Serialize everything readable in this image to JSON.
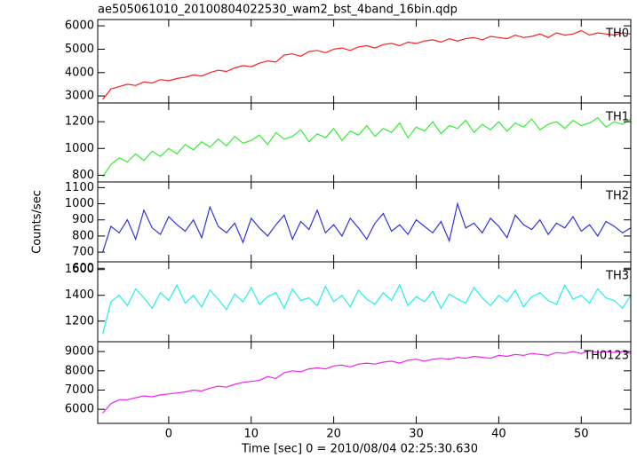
{
  "chart_data": {
    "type": "line",
    "title": "ae505061010_20100804022530_wam2_bst_4band_16bin.qdp",
    "x_label": "Time [sec] 0 = 2010/08/04 02:25:30.630",
    "y_label": "Counts/sec",
    "x": [
      -8,
      -7,
      -6,
      -5,
      -4,
      -3,
      -2,
      -1,
      0,
      1,
      2,
      3,
      4,
      5,
      6,
      7,
      8,
      9,
      10,
      11,
      12,
      13,
      14,
      15,
      16,
      17,
      18,
      19,
      20,
      21,
      22,
      23,
      24,
      25,
      26,
      27,
      28,
      29,
      30,
      31,
      32,
      33,
      34,
      35,
      36,
      37,
      38,
      39,
      40,
      41,
      42,
      43,
      44,
      45,
      46,
      47,
      48,
      49,
      50,
      51,
      52,
      53,
      54,
      55,
      56
    ],
    "xlim": [
      -8.6,
      56.0
    ],
    "xticks": [
      0,
      10,
      20,
      30,
      40,
      50
    ],
    "series": [
      {
        "name": "TH0",
        "color": "#ff2020",
        "ylim": [
          2700,
          6270
        ],
        "yticks": [
          3000,
          4000,
          5000,
          6000
        ],
        "values": [
          2850,
          3300,
          3400,
          3500,
          3450,
          3600,
          3550,
          3700,
          3650,
          3750,
          3800,
          3900,
          3850,
          4000,
          4100,
          4050,
          4200,
          4300,
          4250,
          4400,
          4500,
          4450,
          4750,
          4800,
          4700,
          4900,
          4950,
          4850,
          5000,
          5050,
          4950,
          5100,
          5150,
          5050,
          5200,
          5250,
          5150,
          5300,
          5250,
          5350,
          5400,
          5300,
          5450,
          5350,
          5450,
          5500,
          5400,
          5550,
          5500,
          5450,
          5600,
          5500,
          5550,
          5650,
          5500,
          5700,
          5600,
          5650,
          5800,
          5600,
          5700,
          5650,
          5600,
          5700,
          5650
        ]
      },
      {
        "name": "TH1",
        "color": "#33ee33",
        "ylim": [
          750,
          1340
        ],
        "yticks": [
          800,
          1000,
          1200
        ],
        "values": [
          790,
          880,
          930,
          900,
          960,
          910,
          980,
          940,
          1000,
          960,
          1030,
          990,
          1050,
          1010,
          1070,
          1020,
          1090,
          1040,
          1060,
          1100,
          1030,
          1120,
          1070,
          1090,
          1140,
          1050,
          1110,
          1080,
          1150,
          1060,
          1130,
          1100,
          1170,
          1090,
          1150,
          1120,
          1190,
          1080,
          1160,
          1130,
          1200,
          1110,
          1170,
          1150,
          1210,
          1120,
          1180,
          1140,
          1200,
          1130,
          1190,
          1160,
          1220,
          1140,
          1180,
          1200,
          1150,
          1210,
          1170,
          1190,
          1230,
          1160,
          1200,
          1180,
          1220
        ]
      },
      {
        "name": "TH2",
        "color": "#3333dd",
        "ylim": [
          640,
          1135
        ],
        "yticks": [
          600,
          700,
          800,
          900,
          1000,
          1100
        ],
        "values": [
          700,
          860,
          820,
          900,
          780,
          960,
          850,
          810,
          920,
          870,
          830,
          900,
          790,
          980,
          860,
          820,
          880,
          760,
          910,
          850,
          800,
          870,
          930,
          780,
          890,
          840,
          960,
          820,
          870,
          800,
          910,
          850,
          780,
          880,
          940,
          830,
          870,
          810,
          900,
          860,
          820,
          890,
          770,
          1000,
          850,
          880,
          820,
          910,
          860,
          790,
          930,
          870,
          840,
          900,
          810,
          880,
          850,
          920,
          830,
          870,
          800,
          890,
          860,
          820,
          850
        ]
      },
      {
        "name": "TH3",
        "color": "#22eeee",
        "ylim": [
          1040,
          1660
        ],
        "yticks": [
          1200,
          1400,
          1600
        ],
        "values": [
          1100,
          1350,
          1400,
          1320,
          1450,
          1380,
          1300,
          1420,
          1360,
          1480,
          1340,
          1400,
          1310,
          1440,
          1370,
          1290,
          1410,
          1350,
          1460,
          1330,
          1390,
          1420,
          1300,
          1450,
          1360,
          1380,
          1320,
          1470,
          1350,
          1400,
          1310,
          1440,
          1370,
          1330,
          1420,
          1360,
          1480,
          1320,
          1390,
          1350,
          1430,
          1300,
          1410,
          1370,
          1340,
          1460,
          1380,
          1320,
          1400,
          1350,
          1440,
          1310,
          1390,
          1420,
          1360,
          1330,
          1480,
          1370,
          1400,
          1340,
          1450,
          1380,
          1360,
          1300,
          1400
        ]
      },
      {
        "name": "TH0123",
        "color": "#ee22ee",
        "ylim": [
          5270,
          9510
        ],
        "yticks": [
          6000,
          7000,
          8000,
          9000
        ],
        "values": [
          5800,
          6300,
          6500,
          6500,
          6600,
          6700,
          6650,
          6750,
          6800,
          6850,
          6900,
          7000,
          6950,
          7100,
          7200,
          7150,
          7300,
          7400,
          7450,
          7500,
          7700,
          7600,
          7900,
          8000,
          7950,
          8100,
          8150,
          8100,
          8250,
          8300,
          8200,
          8350,
          8400,
          8350,
          8450,
          8500,
          8400,
          8550,
          8600,
          8500,
          8600,
          8650,
          8600,
          8700,
          8650,
          8750,
          8700,
          8650,
          8800,
          8750,
          8850,
          8800,
          8900,
          8850,
          8800,
          8950,
          8900,
          9000,
          8900,
          9050,
          8950,
          9000,
          8950,
          9000,
          8900
        ]
      }
    ]
  }
}
